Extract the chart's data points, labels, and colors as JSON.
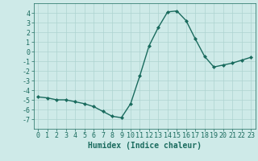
{
  "x": [
    0,
    1,
    2,
    3,
    4,
    5,
    6,
    7,
    8,
    9,
    10,
    11,
    12,
    13,
    14,
    15,
    16,
    17,
    18,
    19,
    20,
    21,
    22,
    23
  ],
  "y": [
    -4.7,
    -4.8,
    -5.0,
    -5.0,
    -5.2,
    -5.4,
    -5.7,
    -6.2,
    -6.7,
    -6.85,
    -5.4,
    -2.5,
    0.6,
    2.5,
    4.1,
    4.2,
    3.2,
    1.3,
    -0.5,
    -1.6,
    -1.4,
    -1.2,
    -0.9,
    -0.6
  ],
  "line_color": "#1a6b5e",
  "marker": "D",
  "markersize": 2.0,
  "linewidth": 1.0,
  "xlabel": "Humidex (Indice chaleur)",
  "xlim": [
    -0.5,
    23.5
  ],
  "ylim": [
    -8,
    5
  ],
  "yticks": [
    -7,
    -6,
    -5,
    -4,
    -3,
    -2,
    -1,
    0,
    1,
    2,
    3,
    4
  ],
  "xticks": [
    0,
    1,
    2,
    3,
    4,
    5,
    6,
    7,
    8,
    9,
    10,
    11,
    12,
    13,
    14,
    15,
    16,
    17,
    18,
    19,
    20,
    21,
    22,
    23
  ],
  "bg_color": "#ceeae8",
  "grid_color": "#aed4d0",
  "tick_color": "#1a6b5e",
  "label_color": "#1a6b5e",
  "xlabel_fontsize": 7,
  "tick_fontsize": 6
}
